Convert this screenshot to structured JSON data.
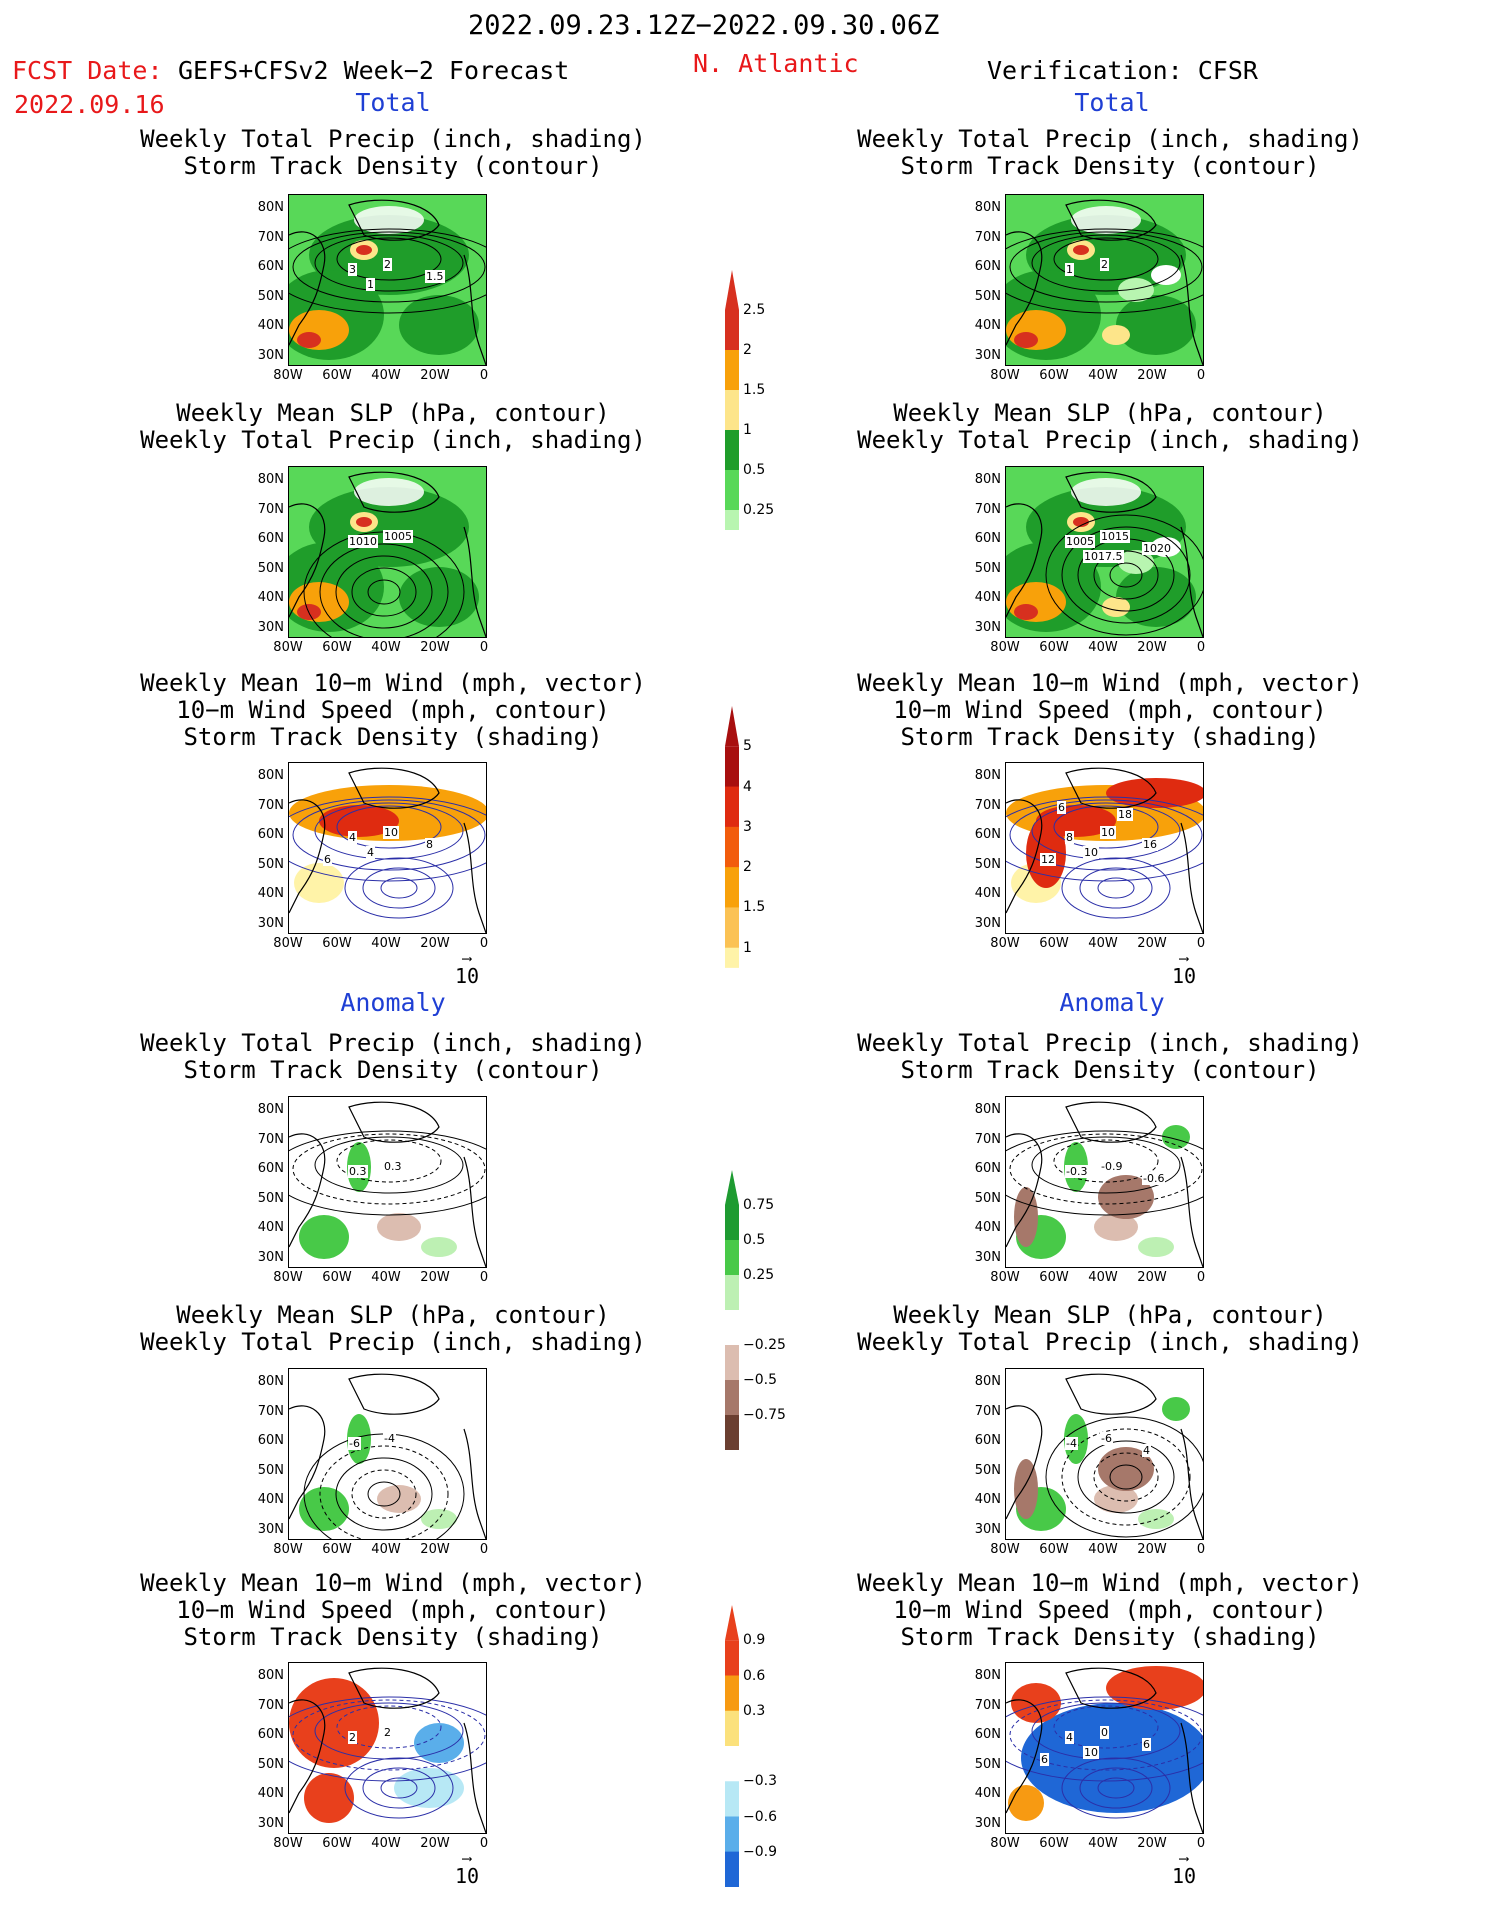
{
  "header": {
    "period": "2022.09.23.12Z−2022.09.30.06Z",
    "fcst_label": "FCST Date:",
    "fcst_model": "GEFS+CFSv2 Week−2 Forecast",
    "fcst_date": "2022.09.16",
    "region": "N. Atlantic",
    "verification": "Verification: CFSR"
  },
  "sections": {
    "total": "Total",
    "anomaly": "Anomaly"
  },
  "panel_titles": {
    "precip_storm": "Weekly Total Precip (inch, shading)\nStorm Track Density (contour)",
    "slp_precip": "Weekly Mean SLP (hPa, contour)\nWeekly Total Precip (inch, shading)",
    "wind_storm": "Weekly Mean 10−m Wind (mph, vector)\n10−m Wind Speed (mph, contour)\nStorm Track Density (shading)"
  },
  "axes": {
    "lat_ticks": [
      "80N",
      "70N",
      "60N",
      "50N",
      "40N",
      "30N"
    ],
    "lon_ticks": [
      "80W",
      "60W",
      "40W",
      "20W",
      "0"
    ]
  },
  "vector_ref": "10",
  "colorbars": {
    "precip_total": {
      "labels": [
        "2.5",
        "2",
        "1.5",
        "1",
        "0.5",
        "0.25"
      ],
      "colors": [
        "#d7301f",
        "#f8a10a",
        "#fde58a",
        "#1f9d2a",
        "#58d858",
        "#b8f5b0"
      ]
    },
    "storm_total": {
      "labels": [
        "5",
        "4",
        "3",
        "2",
        "1.5",
        "1"
      ],
      "colors": [
        "#a80f0f",
        "#df2b10",
        "#f25c0c",
        "#f8a10a",
        "#fbc254",
        "#fff3a8"
      ]
    },
    "precip_anom": {
      "labels": [
        "0.75",
        "0.5",
        "0.25",
        "−0.25",
        "−0.5",
        "−0.75"
      ],
      "colors": [
        "#1e9b31",
        "#48c948",
        "#bdf0b3",
        "#ffffff",
        "#dcbdb0",
        "#a6786a",
        "#6b3f31"
      ]
    },
    "storm_anom": {
      "labels": [
        "0.9",
        "0.6",
        "0.3",
        "−0.3",
        "−0.6",
        "−0.9"
      ],
      "colors": [
        "#e8401c",
        "#f79a12",
        "#fbe17c",
        "#ffffff",
        "#b7e8f5",
        "#5aaeea",
        "#1f67d6"
      ]
    }
  },
  "panels": {
    "f_precip": {
      "labels": [
        "3",
        "2",
        "1.5",
        "1"
      ]
    },
    "v_precip": {
      "labels": [
        "1",
        "2"
      ]
    },
    "f_slp": {
      "labels": [
        "1010",
        "1005"
      ]
    },
    "v_slp": {
      "labels": [
        "1005",
        "1015",
        "1020",
        "1017.5"
      ]
    },
    "f_wind": {
      "labels": [
        "4",
        "10",
        "8",
        "4",
        "6"
      ]
    },
    "v_wind": {
      "labels": [
        "8",
        "10",
        "16",
        "10",
        "12",
        "18",
        "6"
      ]
    },
    "fa_precip": {
      "labels": [
        "0.3",
        "0.3"
      ]
    },
    "va_precip": {
      "labels": [
        "-0.3",
        "-0.9",
        "-0.6"
      ]
    },
    "fa_slp": {
      "labels": [
        "-6",
        "-4"
      ]
    },
    "va_slp": {
      "labels": [
        "-4",
        "-6",
        "4"
      ]
    },
    "fa_wind": {
      "labels": [
        "2",
        "2"
      ]
    },
    "va_wind": {
      "labels": [
        "4",
        "0",
        "6",
        "10",
        "6"
      ]
    }
  }
}
